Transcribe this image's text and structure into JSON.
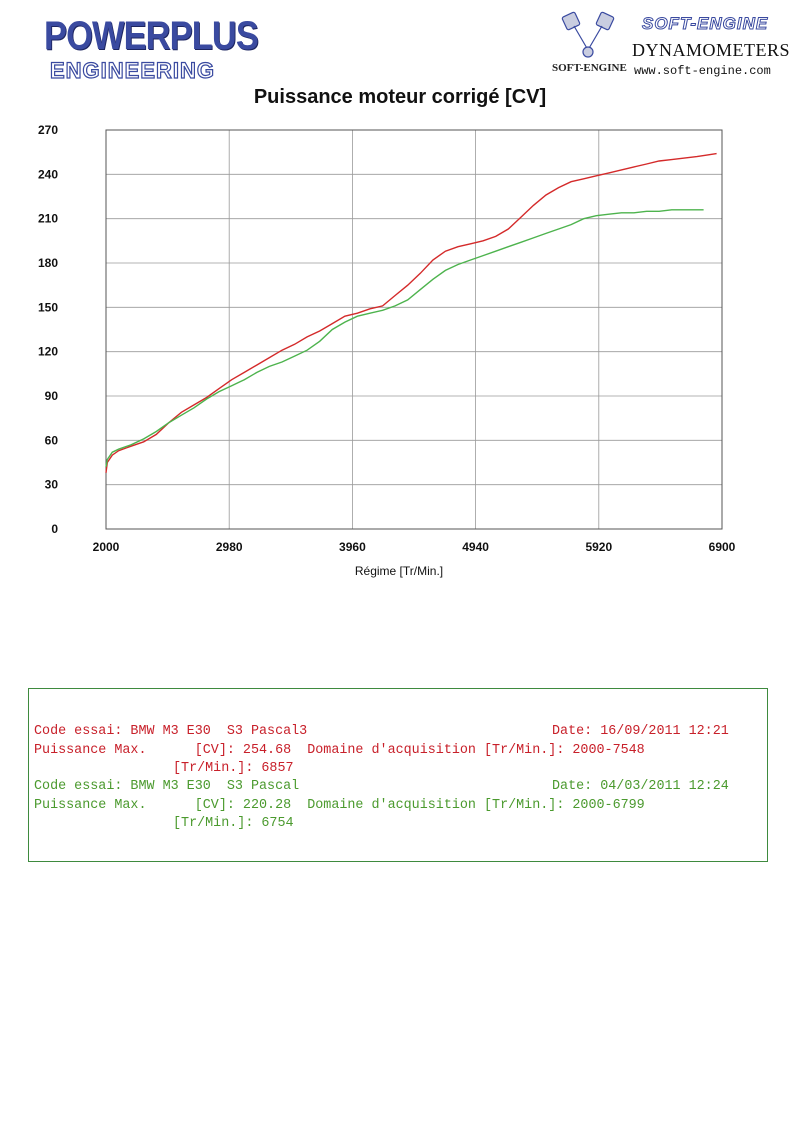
{
  "header": {
    "logo_line1": "POWERPLUS",
    "logo_line2": "ENGINEERING",
    "brand": "SOFT-ENGINE",
    "dynamometers": "DYNAMOMETERS",
    "small_logo": "SOFT-ENGINE",
    "url": "www.soft-engine.com"
  },
  "chart_data": {
    "type": "line",
    "title": "Puissance moteur corrigé [CV]",
    "xlabel": "Régime [Tr/Min.]",
    "ylabel": "",
    "xlim": [
      2000,
      6900
    ],
    "ylim": [
      0,
      270
    ],
    "x_ticks": [
      "2000",
      "2980",
      "3960",
      "4940",
      "5920",
      "6900"
    ],
    "y_ticks": [
      "270",
      "240",
      "210",
      "180",
      "150",
      "120",
      "90",
      "60",
      "30",
      "0"
    ],
    "grid": true,
    "series": [
      {
        "color": "#d42a2a",
        "points": [
          [
            2000,
            38
          ],
          [
            2010,
            45
          ],
          [
            2050,
            50
          ],
          [
            2100,
            53
          ],
          [
            2200,
            56
          ],
          [
            2300,
            59
          ],
          [
            2400,
            64
          ],
          [
            2500,
            72
          ],
          [
            2600,
            79
          ],
          [
            2700,
            84
          ],
          [
            2800,
            89
          ],
          [
            2900,
            95
          ],
          [
            3000,
            101
          ],
          [
            3100,
            106
          ],
          [
            3200,
            111
          ],
          [
            3300,
            116
          ],
          [
            3400,
            121
          ],
          [
            3500,
            125
          ],
          [
            3600,
            130
          ],
          [
            3700,
            134
          ],
          [
            3800,
            139
          ],
          [
            3900,
            144
          ],
          [
            4000,
            146
          ],
          [
            4100,
            149
          ],
          [
            4200,
            151
          ],
          [
            4300,
            158
          ],
          [
            4400,
            165
          ],
          [
            4500,
            173
          ],
          [
            4600,
            182
          ],
          [
            4700,
            188
          ],
          [
            4800,
            191
          ],
          [
            4900,
            193
          ],
          [
            5000,
            195
          ],
          [
            5100,
            198
          ],
          [
            5200,
            203
          ],
          [
            5300,
            211
          ],
          [
            5400,
            219
          ],
          [
            5500,
            226
          ],
          [
            5600,
            231
          ],
          [
            5700,
            235
          ],
          [
            5800,
            237
          ],
          [
            5900,
            239
          ],
          [
            6000,
            241
          ],
          [
            6100,
            243
          ],
          [
            6200,
            245
          ],
          [
            6300,
            247
          ],
          [
            6400,
            249
          ],
          [
            6500,
            250
          ],
          [
            6600,
            251
          ],
          [
            6700,
            252
          ],
          [
            6780,
            253
          ],
          [
            6857,
            254
          ]
        ]
      },
      {
        "color": "#4db34d",
        "points": [
          [
            2000,
            42
          ],
          [
            2010,
            47
          ],
          [
            2050,
            52
          ],
          [
            2100,
            54
          ],
          [
            2200,
            57
          ],
          [
            2300,
            61
          ],
          [
            2400,
            66
          ],
          [
            2500,
            72
          ],
          [
            2600,
            77
          ],
          [
            2700,
            82
          ],
          [
            2800,
            88
          ],
          [
            2900,
            93
          ],
          [
            3000,
            97
          ],
          [
            3100,
            101
          ],
          [
            3200,
            106
          ],
          [
            3300,
            110
          ],
          [
            3400,
            113
          ],
          [
            3500,
            117
          ],
          [
            3600,
            121
          ],
          [
            3700,
            127
          ],
          [
            3800,
            135
          ],
          [
            3900,
            140
          ],
          [
            4000,
            144
          ],
          [
            4100,
            146
          ],
          [
            4200,
            148
          ],
          [
            4300,
            151
          ],
          [
            4400,
            155
          ],
          [
            4500,
            162
          ],
          [
            4600,
            169
          ],
          [
            4700,
            175
          ],
          [
            4800,
            179
          ],
          [
            4900,
            182
          ],
          [
            5000,
            185
          ],
          [
            5100,
            188
          ],
          [
            5200,
            191
          ],
          [
            5300,
            194
          ],
          [
            5400,
            197
          ],
          [
            5500,
            200
          ],
          [
            5600,
            203
          ],
          [
            5700,
            206
          ],
          [
            5800,
            210
          ],
          [
            5900,
            212
          ],
          [
            6000,
            213
          ],
          [
            6100,
            214
          ],
          [
            6200,
            214
          ],
          [
            6300,
            215
          ],
          [
            6400,
            215
          ],
          [
            6500,
            216
          ],
          [
            6600,
            216
          ],
          [
            6700,
            216
          ],
          [
            6754,
            216
          ]
        ]
      }
    ]
  },
  "info": {
    "run1": {
      "code": "Code essai: BMW M3 E30  S3 Pascal3",
      "date": "Date: 16/09/2011 12:21",
      "pmax": "Puissance Max.      [CV]: 254.68  Domaine d'acquisition [Tr/Min.]: 2000-7548",
      "rpm": "[Tr/Min.]: 6857"
    },
    "run2": {
      "code": "Code essai: BMW M3 E30  S3 Pascal",
      "date": "Date: 04/03/2011 12:24",
      "pmax": "Puissance Max.      [CV]: 220.28  Domaine d'acquisition [Tr/Min.]: 2000-6799",
      "rpm": "[Tr/Min.]: 6754"
    }
  }
}
